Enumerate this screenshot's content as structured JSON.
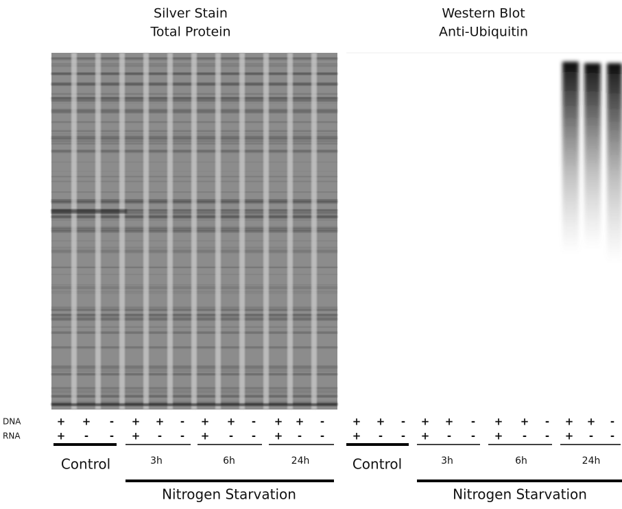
{
  "row_labels": {
    "dna": "DNA",
    "rna": "RNA"
  },
  "panels": [
    {
      "title": [
        "Silver Stain",
        "Total Protein"
      ],
      "dna": [
        "+",
        "+",
        "-",
        "+",
        "+",
        "-",
        "+",
        "+",
        "-",
        "+",
        "+",
        "-"
      ],
      "rna": [
        "+",
        "-",
        "-",
        "+",
        "-",
        "-",
        "+",
        "-",
        "-",
        "+",
        "-",
        "-"
      ],
      "groups": [
        "Control",
        "3h",
        "6h",
        "24h"
      ],
      "bar_label": "Nitrogen Starvation"
    },
    {
      "title": [
        "Western Blot",
        "Anti-Ubiquitin"
      ],
      "dna": [
        "+",
        "+",
        "-",
        "+",
        "+",
        "-",
        "+",
        "+",
        "-",
        "+",
        "+",
        "-"
      ],
      "rna": [
        "+",
        "-",
        "-",
        "+",
        "-",
        "-",
        "+",
        "-",
        "-",
        "+",
        "-",
        "-"
      ],
      "groups": [
        "Control",
        "3h",
        "6h",
        "24h"
      ],
      "bar_label": "Nitrogen Starvation"
    }
  ]
}
